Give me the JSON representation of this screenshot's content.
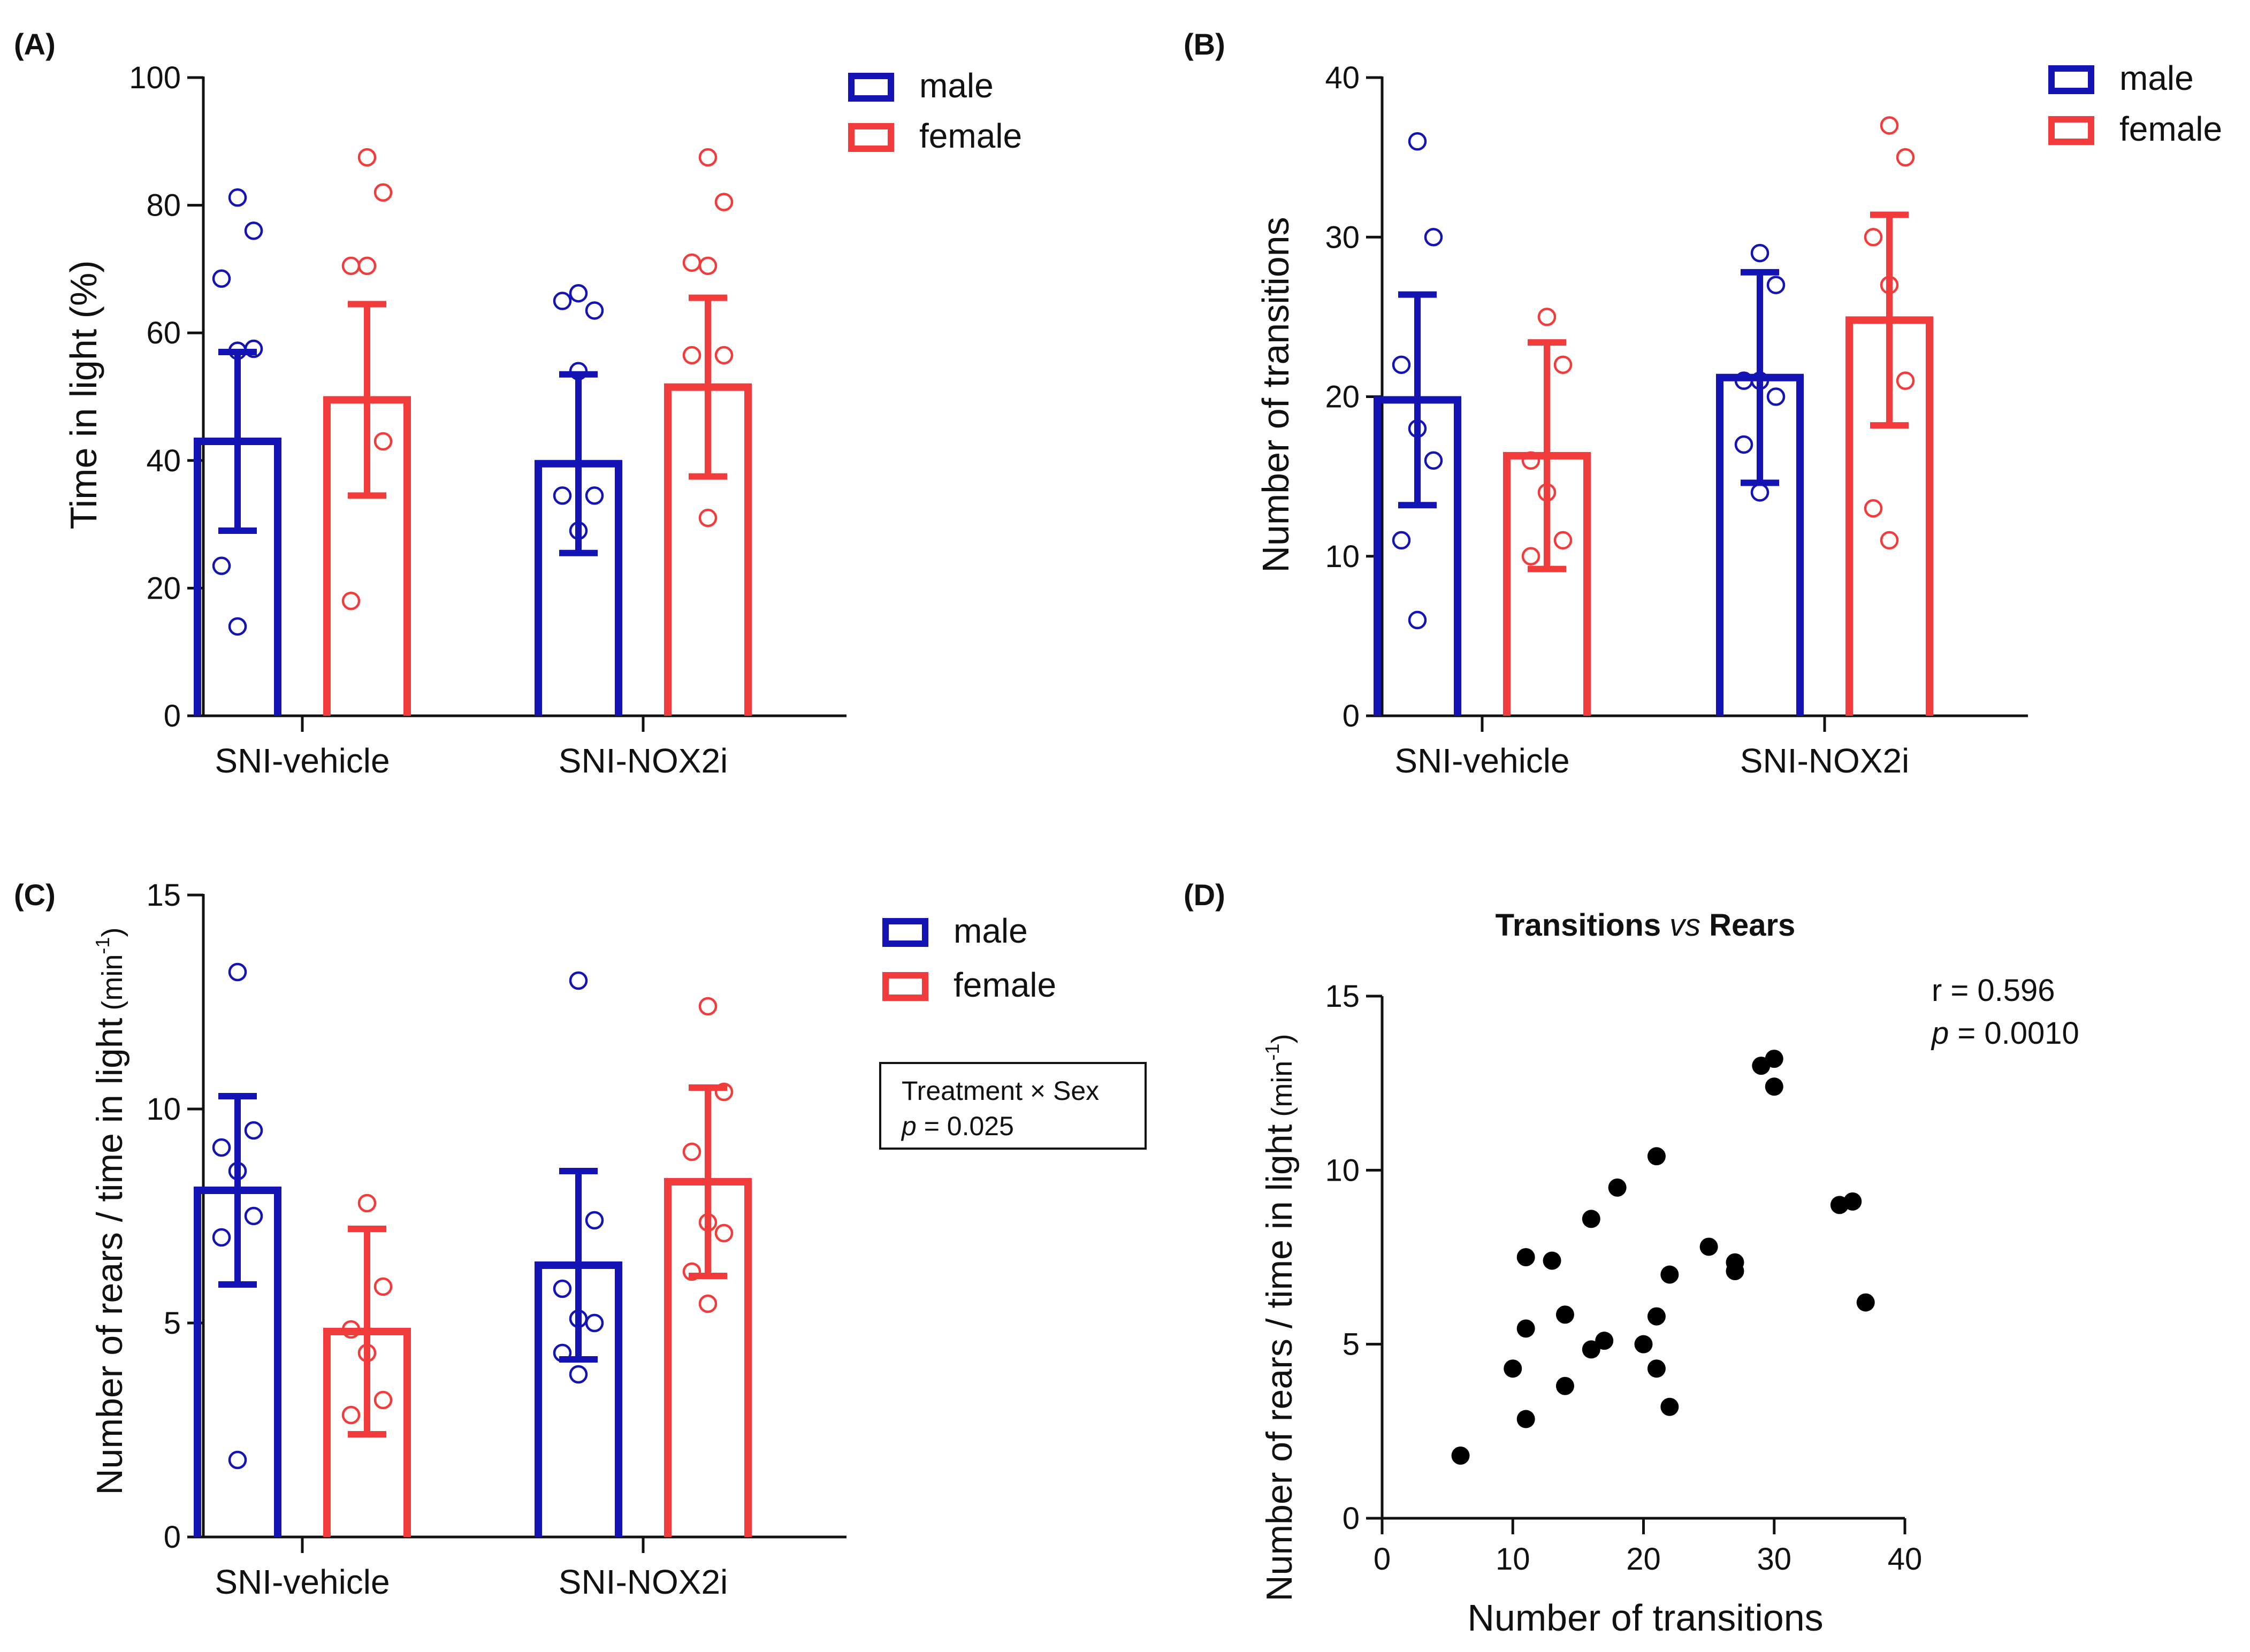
{
  "colors": {
    "male": "#1414b4",
    "female": "#f23c3c",
    "axis": "#111111",
    "scatter": "#000000"
  },
  "chart_data": [
    {
      "panel": "(A)",
      "type": "bar",
      "categories": [
        "SNI-vehicle",
        "SNI-NOX2i"
      ],
      "ylabel": "Time in light  (%)",
      "ylim": [
        0,
        100
      ],
      "yticks": [
        0,
        20,
        40,
        60,
        80,
        100
      ],
      "legend": [
        "male",
        "female"
      ],
      "series": [
        {
          "name": "male",
          "color": "#1414b4",
          "means": [
            43,
            39.5
          ],
          "errors": [
            14,
            14
          ],
          "points": [
            [
              81.2,
              76,
              68.5,
              57.2,
              57.5,
              23.5,
              14
            ],
            [
              66.2,
              63.5,
              65,
              54,
              34.5,
              34.5,
              29
            ]
          ]
        },
        {
          "name": "female",
          "color": "#f23c3c",
          "means": [
            49.5,
            51.5
          ],
          "errors": [
            15,
            14
          ],
          "points": [
            [
              87.5,
              82,
              70.5,
              70.5,
              43,
              18
            ],
            [
              87.5,
              80.5,
              71,
              70.5,
              56.5,
              56.5,
              31
            ]
          ]
        }
      ]
    },
    {
      "panel": "(B)",
      "type": "bar",
      "categories": [
        "SNI-vehicle",
        "SNI-NOX2i"
      ],
      "ylabel": "Number of transitions",
      "ylim": [
        0,
        40
      ],
      "yticks": [
        0,
        10,
        20,
        30,
        40
      ],
      "legend": [
        "male",
        "female"
      ],
      "series": [
        {
          "name": "male",
          "color": "#1414b4",
          "means": [
            19.8,
            21.2
          ],
          "errors": [
            6.6,
            6.6
          ],
          "points": [
            [
              36,
              30,
              22,
              18,
              16,
              11,
              6
            ],
            [
              29,
              27,
              21,
              21,
              20,
              17,
              14
            ]
          ]
        },
        {
          "name": "female",
          "color": "#f23c3c",
          "means": [
            16.3,
            24.8
          ],
          "errors": [
            7.1,
            6.6
          ],
          "points": [
            [
              25,
              22,
              16,
              14,
              11,
              10
            ],
            [
              37,
              35,
              30,
              27,
              21,
              13,
              11
            ]
          ]
        }
      ]
    },
    {
      "panel": "(C)",
      "type": "bar",
      "categories": [
        "SNI-vehicle",
        "SNI-NOX2i"
      ],
      "ylabel": "Number of rears / time in light",
      "ylabel_unit": "(min",
      "ylabel_sup": "-1",
      "ylabel_close": ")",
      "ylim": [
        0,
        15
      ],
      "yticks": [
        0,
        5,
        10,
        15
      ],
      "legend": [
        "male",
        "female"
      ],
      "annotation": {
        "line1": "Treatment × Sex",
        "p_label": "p",
        "p_value": " = 0.025"
      },
      "series": [
        {
          "name": "male",
          "color": "#1414b4",
          "means": [
            8.1,
            6.35
          ],
          "errors": [
            2.2,
            2.2
          ],
          "points": [
            [
              13.2,
              9.5,
              9.1,
              8.55,
              7.5,
              7,
              1.8
            ],
            [
              13,
              7.4,
              5.8,
              5.1,
              5,
              4.3,
              3.8
            ]
          ]
        },
        {
          "name": "female",
          "color": "#f23c3c",
          "means": [
            4.8,
            8.3
          ],
          "errors": [
            2.4,
            2.2
          ],
          "points": [
            [
              7.8,
              5.85,
              4.85,
              4.3,
              3.2,
              2.85
            ],
            [
              12.4,
              10.4,
              9,
              7.35,
              7.1,
              6.2,
              5.45
            ]
          ]
        }
      ]
    },
    {
      "panel": "(D)",
      "type": "scatter",
      "title_a": "Transitions",
      "title_b": "vs",
      "title_c": "Rears",
      "xlabel": "Number of transitions",
      "ylabel": "Number of rears / time in light",
      "ylabel_unit": "(min",
      "ylabel_sup": "-1",
      "ylabel_close": ")",
      "xlim": [
        0,
        40
      ],
      "ylim": [
        0,
        15
      ],
      "xticks": [
        0,
        10,
        20,
        30,
        40
      ],
      "yticks": [
        0,
        5,
        10,
        15
      ],
      "stats": {
        "r_text": "r = 0.596",
        "p_label": "p",
        "p_value": " = 0.0010"
      },
      "points": [
        [
          6,
          1.8
        ],
        [
          10,
          4.3
        ],
        [
          11,
          7.5
        ],
        [
          11,
          5.45
        ],
        [
          11,
          2.85
        ],
        [
          13,
          7.4
        ],
        [
          14,
          5.85
        ],
        [
          14,
          3.8
        ],
        [
          16,
          8.6
        ],
        [
          16,
          4.85
        ],
        [
          17,
          5.1
        ],
        [
          18,
          9.5
        ],
        [
          20,
          5
        ],
        [
          21,
          10.4
        ],
        [
          21,
          5.8
        ],
        [
          21,
          4.3
        ],
        [
          22,
          7
        ],
        [
          22,
          3.2
        ],
        [
          25,
          7.8
        ],
        [
          27,
          7.35
        ],
        [
          27,
          7.1
        ],
        [
          29,
          13
        ],
        [
          30,
          13.2
        ],
        [
          30,
          12.4
        ],
        [
          35,
          9
        ],
        [
          36,
          9.1
        ],
        [
          37,
          6.2
        ]
      ]
    }
  ]
}
